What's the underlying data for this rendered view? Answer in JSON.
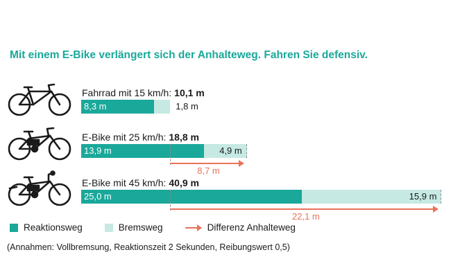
{
  "title": "Mit einem E-Bike verlängert sich der Anhalteweg. Fahren Sie defensiv.",
  "colors": {
    "reaction": "#1aa89a",
    "braking": "#c6e9e3",
    "difference": "#e8725a",
    "title": "#1aa89a"
  },
  "chart_data": {
    "type": "bar",
    "orientation": "horizontal",
    "stacked": true,
    "categories": [
      "Fahrrad mit 15 km/h:",
      "E-Bike mit 25 km/h:",
      "E-Bike mit 45 km/h:"
    ],
    "totals": [
      "10,1 m",
      "18,8 m",
      "40,9 m"
    ],
    "series": [
      {
        "name": "Reaktionsweg",
        "values": [
          8.3,
          13.9,
          25.0
        ],
        "labels": [
          "8,3 m",
          "13,9 m",
          "25,0 m"
        ]
      },
      {
        "name": "Bremsweg",
        "values": [
          1.8,
          4.9,
          15.9
        ],
        "labels": [
          "1,8 m",
          "4,9 m",
          "15,9 m"
        ]
      }
    ],
    "differences": [
      {
        "row": 1,
        "value": 8.7,
        "label": "8,7 m"
      },
      {
        "row": 2,
        "value": 22.1,
        "label": "22,1 m"
      }
    ],
    "legend": [
      "Reaktionsweg",
      "Bremsweg",
      "Differenz Anhalteweg"
    ],
    "legend_position": "bottom",
    "footnote": "(Annahmen: Vollbremsung, Reaktionszeit 2 Sekunden, Reibungswert 0,5)"
  },
  "icons": [
    "bicycle-icon",
    "e-bike-icon",
    "speed-e-bike-icon"
  ]
}
